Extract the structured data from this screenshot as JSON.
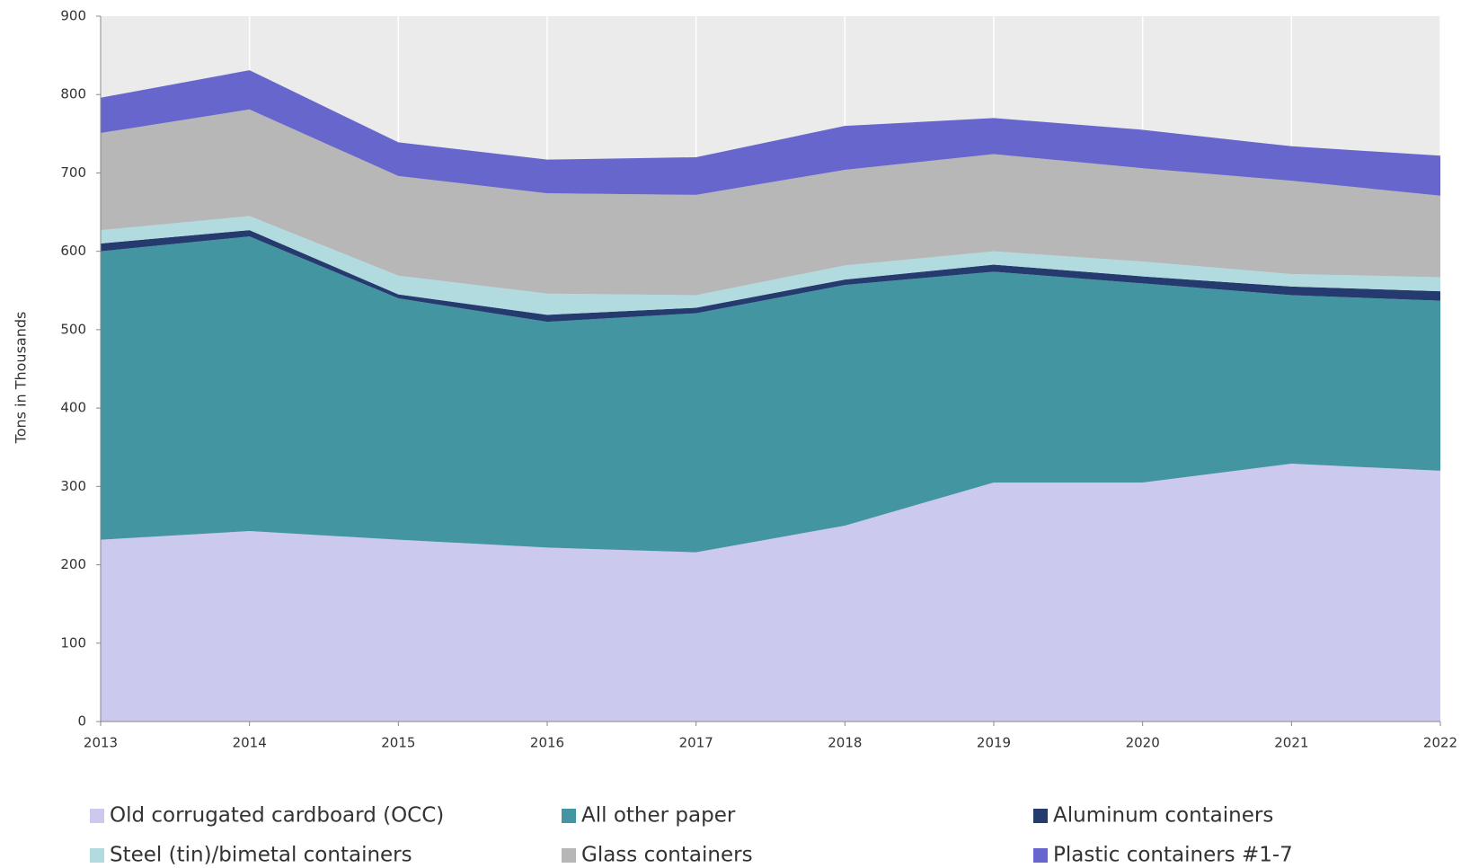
{
  "chart_data": {
    "type": "stacked_area",
    "y_label": "Tons in Thousands",
    "x": [
      2013,
      2014,
      2015,
      2016,
      2017,
      2018,
      2019,
      2020,
      2021,
      2022
    ],
    "series": [
      {
        "name": "Old corrugated cardboard (OCC)",
        "color": "#cbc9ee",
        "values": [
          232,
          243,
          232,
          222,
          216,
          250,
          305,
          305,
          329,
          320
        ]
      },
      {
        "name": "All other paper",
        "color": "#4495a2",
        "values": [
          368,
          376,
          308,
          288,
          305,
          307,
          269,
          254,
          215,
          217
        ]
      },
      {
        "name": "Aluminum containers",
        "color": "#253a6e",
        "values": [
          10,
          8,
          5,
          9,
          7,
          7,
          9,
          9,
          11,
          12
        ]
      },
      {
        "name": "Steel (tin)/bimetal containers",
        "color": "#b2dbe0",
        "values": [
          17,
          18,
          24,
          27,
          16,
          18,
          17,
          19,
          16,
          18
        ]
      },
      {
        "name": "Glass containers",
        "color": "#b7b7b7",
        "values": [
          124,
          136,
          127,
          128,
          128,
          122,
          124,
          119,
          119,
          104
        ]
      },
      {
        "name": "Plastic containers #1-7",
        "color": "#6666cc",
        "values": [
          45,
          50,
          43,
          43,
          48,
          56,
          46,
          49,
          44,
          51
        ]
      }
    ],
    "xlim": [
      2013,
      2022
    ],
    "xticks": [
      2013,
      2014,
      2015,
      2016,
      2017,
      2018,
      2019,
      2020,
      2021,
      2022
    ],
    "ylim": [
      0,
      900
    ],
    "yticks": [
      0,
      100,
      200,
      300,
      400,
      500,
      600,
      700,
      800,
      900
    ],
    "grid": "x",
    "legend": "bottom"
  }
}
